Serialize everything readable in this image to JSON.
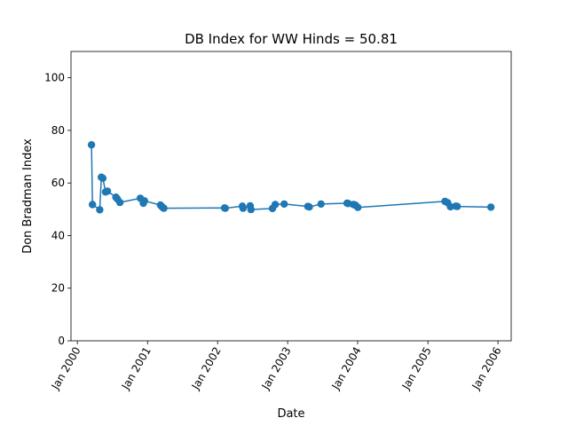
{
  "chart_data": {
    "type": "line",
    "title": "DB Index for WW Hinds = 50.81",
    "xlabel": "Date",
    "ylabel": "Don Bradman Index",
    "xlim": [
      "1999-11-29",
      "2006-03-11"
    ],
    "ylim": [
      0,
      110
    ],
    "grid": false,
    "x_ticks": [
      {
        "date": "2000-01-01",
        "label": "Jan 2000"
      },
      {
        "date": "2001-01-01",
        "label": "Jan 2001"
      },
      {
        "date": "2002-01-01",
        "label": "Jan 2002"
      },
      {
        "date": "2003-01-01",
        "label": "Jan 2003"
      },
      {
        "date": "2004-01-01",
        "label": "Jan 2004"
      },
      {
        "date": "2005-01-01",
        "label": "Jan 2005"
      },
      {
        "date": "2006-01-01",
        "label": "Jan 2006"
      }
    ],
    "y_ticks": [
      0,
      20,
      40,
      60,
      80,
      100
    ],
    "color": "#1f77b4",
    "series": [
      {
        "marker": "circle",
        "points": [
          {
            "x": "2000-03-15",
            "y": 74.5
          },
          {
            "x": "2000-03-20",
            "y": 51.8
          },
          {
            "x": "2000-04-27",
            "y": 49.8
          },
          {
            "x": "2000-05-05",
            "y": 62.2
          },
          {
            "x": "2000-05-13",
            "y": 61.8
          },
          {
            "x": "2000-05-27",
            "y": 56.6
          },
          {
            "x": "2000-06-06",
            "y": 56.9
          },
          {
            "x": "2000-07-20",
            "y": 54.6
          },
          {
            "x": "2000-07-27",
            "y": 54.0
          },
          {
            "x": "2000-08-10",
            "y": 52.6
          },
          {
            "x": "2000-11-24",
            "y": 54.2
          },
          {
            "x": "2000-12-10",
            "y": 52.3
          },
          {
            "x": "2000-12-16",
            "y": 53.2
          },
          {
            "x": "2001-03-09",
            "y": 51.6
          },
          {
            "x": "2001-03-19",
            "y": 50.8
          },
          {
            "x": "2001-03-27",
            "y": 50.4
          },
          {
            "x": "2002-02-06",
            "y": 50.5
          },
          {
            "x": "2002-02-10",
            "y": 50.4
          },
          {
            "x": "2002-05-10",
            "y": 51.2
          },
          {
            "x": "2002-05-14",
            "y": 50.4
          },
          {
            "x": "2002-06-20",
            "y": 51.3
          },
          {
            "x": "2002-06-24",
            "y": 49.9
          },
          {
            "x": "2002-10-14",
            "y": 50.3
          },
          {
            "x": "2002-10-28",
            "y": 51.8
          },
          {
            "x": "2002-12-14",
            "y": 52.0
          },
          {
            "x": "2003-04-16",
            "y": 51.1
          },
          {
            "x": "2003-04-24",
            "y": 50.9
          },
          {
            "x": "2003-06-24",
            "y": 52.0
          },
          {
            "x": "2003-11-07",
            "y": 52.3
          },
          {
            "x": "2003-11-13",
            "y": 52.2
          },
          {
            "x": "2003-12-10",
            "y": 51.8
          },
          {
            "x": "2003-12-20",
            "y": 51.6
          },
          {
            "x": "2004-01-02",
            "y": 50.7
          },
          {
            "x": "2005-03-31",
            "y": 53.0
          },
          {
            "x": "2005-04-14",
            "y": 52.5
          },
          {
            "x": "2005-04-28",
            "y": 51.0
          },
          {
            "x": "2005-05-26",
            "y": 51.2
          },
          {
            "x": "2005-06-03",
            "y": 51.1
          },
          {
            "x": "2005-11-25",
            "y": 50.81
          }
        ]
      }
    ]
  }
}
